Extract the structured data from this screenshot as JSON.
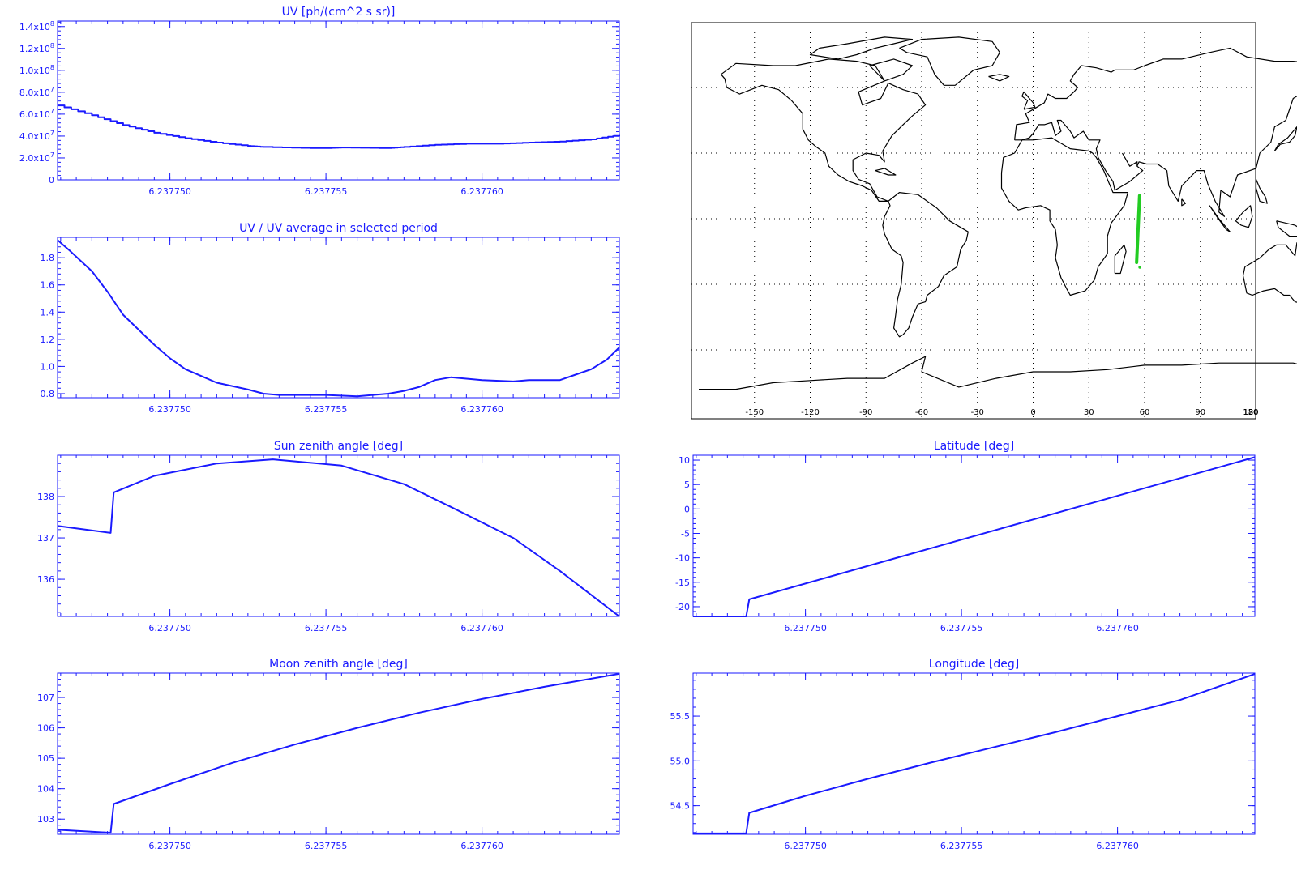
{
  "colors": {
    "plot": "#1a1aff",
    "background": "#ffffff",
    "map_coast": "#000000",
    "map_grid": "#000000",
    "track": "#22cc22"
  },
  "x_axis": {
    "range": [
      6.2377464,
      6.2377644
    ],
    "ticks": [
      6.23775,
      6.237755,
      6.23776
    ],
    "tick_labels": [
      "6.237750",
      "6.237755",
      "6.237760"
    ]
  },
  "map": {
    "lon_ticks": [
      -150,
      -120,
      -90,
      -60,
      -30,
      0,
      30,
      60,
      90,
      120,
      150,
      180
    ],
    "lon_tick_labels": [
      "-150",
      "-120",
      "-90",
      "-60",
      "-30",
      "0",
      "30",
      "60",
      "90",
      "120",
      "150",
      "180"
    ],
    "lat_grid": [
      -60,
      -30,
      0,
      30,
      60
    ],
    "track_lon": [
      55.7,
      57.3
    ],
    "track_lat": [
      -20.0,
      10.5
    ],
    "grid": true
  },
  "chart_data": [
    {
      "id": "uv",
      "type": "line",
      "title": "UV [ph/(cm^2 s sr)]",
      "ylim": [
        0,
        145000000
      ],
      "y_ticks": [
        0,
        20000000,
        40000000,
        60000000,
        80000000,
        100000000,
        120000000,
        140000000
      ],
      "y_tick_labels": [
        "0",
        "2.0x10^7",
        "4.0x10^7",
        "6.0x10^7",
        "8.0x10^7",
        "1.0x10^8",
        "1.2x10^8",
        "1.4x10^8"
      ],
      "step": true,
      "x": [
        6.2377464,
        6.2377475,
        6.2377485,
        6.2377495,
        6.2377505,
        6.2377515,
        6.2377525,
        6.237753,
        6.2377545,
        6.237755,
        6.2377555,
        6.237757,
        6.2377575,
        6.2377585,
        6.2377595,
        6.2377605,
        6.2377615,
        6.2377625,
        6.2377635,
        6.2377644
      ],
      "y": [
        68000000,
        59000000,
        50000000,
        43000000,
        38000000,
        34000000,
        31000000,
        30000000,
        29000000,
        29000000,
        29500000,
        29000000,
        30000000,
        32000000,
        33000000,
        33000000,
        34000000,
        35000000,
        37000000,
        41000000
      ]
    },
    {
      "id": "uv_ratio",
      "type": "line",
      "title": "UV / UV average in selected period",
      "ylim": [
        0.77,
        1.95
      ],
      "y_ticks": [
        0.8,
        1.0,
        1.2,
        1.4,
        1.6,
        1.8
      ],
      "y_tick_labels": [
        "0.8",
        "1.0",
        "1.2",
        "1.4",
        "1.6",
        "1.8"
      ],
      "x": [
        6.2377464,
        6.2377468,
        6.2377475,
        6.237748,
        6.2377485,
        6.237749,
        6.2377495,
        6.23775,
        6.2377505,
        6.2377515,
        6.2377525,
        6.237753,
        6.2377535,
        6.2377545,
        6.237755,
        6.237756,
        6.2377565,
        6.237757,
        6.2377575,
        6.237758,
        6.2377585,
        6.237759,
        6.2377595,
        6.23776,
        6.237761,
        6.2377615,
        6.237762,
        6.2377625,
        6.237763,
        6.2377635,
        6.237764,
        6.2377644
      ],
      "y": [
        1.93,
        1.85,
        1.7,
        1.55,
        1.38,
        1.27,
        1.16,
        1.06,
        0.98,
        0.88,
        0.83,
        0.8,
        0.79,
        0.79,
        0.79,
        0.78,
        0.79,
        0.8,
        0.82,
        0.85,
        0.9,
        0.92,
        0.91,
        0.9,
        0.89,
        0.9,
        0.9,
        0.9,
        0.94,
        0.98,
        1.05,
        1.14
      ]
    },
    {
      "id": "sun_zenith",
      "type": "line",
      "title": "Sun zenith angle [deg]",
      "ylim": [
        135.1,
        139.0
      ],
      "y_ticks": [
        136,
        137,
        138
      ],
      "y_tick_labels": [
        "136",
        "137",
        "138"
      ],
      "x": [
        6.2377464,
        6.2377481,
        6.2377482,
        6.2377495,
        6.2377515,
        6.2377533,
        6.2377555,
        6.2377575,
        6.237759,
        6.237761,
        6.2377625,
        6.2377644
      ],
      "y": [
        137.29,
        137.12,
        138.1,
        138.5,
        138.8,
        138.9,
        138.75,
        138.3,
        137.75,
        137.0,
        136.2,
        135.1
      ]
    },
    {
      "id": "latitude",
      "type": "line",
      "title": "Latitude [deg]",
      "ylim": [
        -22,
        11
      ],
      "y_ticks": [
        -20,
        -15,
        -10,
        -5,
        0,
        5,
        10
      ],
      "y_tick_labels": [
        "-20",
        "-15",
        "-10",
        "-5",
        "0",
        "5",
        "10"
      ],
      "x": [
        6.2377464,
        6.2377481,
        6.2377482,
        6.2377644
      ],
      "y": [
        -22,
        -22,
        -18.5,
        10.6
      ]
    },
    {
      "id": "moon_zenith",
      "type": "line",
      "title": "Moon zenith angle [deg]",
      "ylim": [
        102.5,
        107.8
      ],
      "y_ticks": [
        103,
        104,
        105,
        106,
        107
      ],
      "y_tick_labels": [
        "103",
        "104",
        "105",
        "106",
        "107"
      ],
      "x": [
        6.2377464,
        6.2377481,
        6.2377482,
        6.23775,
        6.237752,
        6.237754,
        6.237756,
        6.237758,
        6.23776,
        6.237762,
        6.2377644
      ],
      "y": [
        102.65,
        102.55,
        103.5,
        104.15,
        104.85,
        105.45,
        106.0,
        106.5,
        106.95,
        107.35,
        107.78
      ]
    },
    {
      "id": "longitude",
      "type": "line",
      "title": "Longitude [deg]",
      "ylim": [
        54.18,
        55.98
      ],
      "y_ticks": [
        54.5,
        55.0,
        55.5
      ],
      "y_tick_labels": [
        "54.5",
        "55.0",
        "55.5"
      ],
      "x": [
        6.2377464,
        6.2377481,
        6.2377482,
        6.23775,
        6.237752,
        6.237754,
        6.237756,
        6.237758,
        6.23776,
        6.237762,
        6.2377644
      ],
      "y": [
        54.19,
        54.19,
        54.42,
        54.61,
        54.8,
        54.98,
        55.15,
        55.32,
        55.5,
        55.68,
        55.97
      ]
    }
  ]
}
